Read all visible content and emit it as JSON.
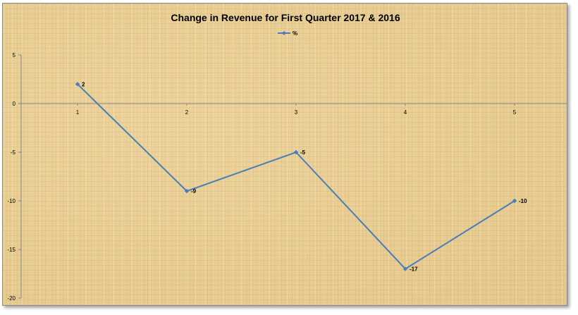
{
  "chart_data": {
    "type": "line",
    "title": "Change in Revenue for First Quarter 2017 & 2016",
    "xlabel": "",
    "ylabel": "",
    "categories": [
      "1",
      "2",
      "3",
      "4",
      "5"
    ],
    "series": [
      {
        "name": "%",
        "values": [
          2,
          -9,
          -5,
          -17,
          -10
        ]
      }
    ],
    "data_labels": [
      "2",
      "-9",
      "-5",
      "-17",
      "-10"
    ],
    "y_ticks": [
      "5",
      "0",
      "-5",
      "-10",
      "-15",
      "-20"
    ],
    "ylim": [
      -20,
      5
    ],
    "grid": false,
    "legend_position": "top",
    "line_color": "#4a7ebb"
  }
}
